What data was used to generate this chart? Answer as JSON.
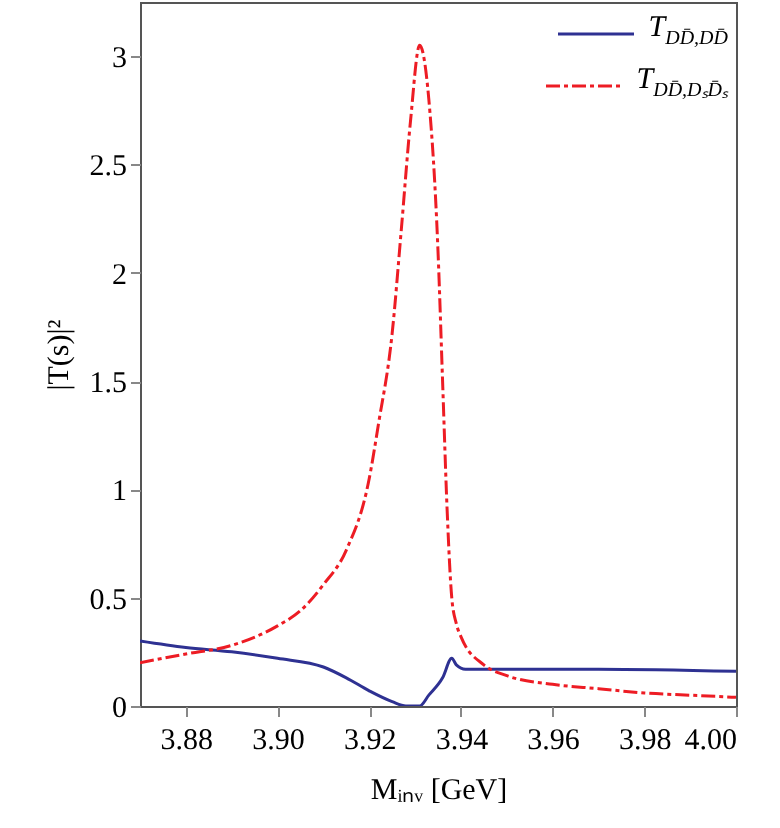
{
  "chart_data": {
    "type": "line",
    "xlabel": "Mᵢₙᵥ [GeV]",
    "ylabel": "|T(s)|²",
    "xlim": [
      3.87,
      4.0
    ],
    "ylim": [
      0,
      3.25
    ],
    "xticks": [
      3.88,
      {
        "value": 3.9,
        "label": "3.90"
      },
      3.92,
      3.94,
      3.96,
      3.98,
      {
        "value": 4.0,
        "label": "4.00"
      }
    ],
    "yticks": [
      0,
      0.5,
      1,
      1.5,
      2,
      2.5,
      3
    ],
    "grid": false,
    "legend": "top right",
    "marker": "none",
    "series": [
      {
        "name": "T$_{DD̄,DD̄}$",
        "color": "#2e3192",
        "line_style": "solid",
        "x": [
          3.87,
          3.88,
          3.89,
          3.9,
          3.91,
          3.915,
          3.92,
          3.925,
          3.928,
          3.931,
          3.933,
          3.936,
          3.938,
          3.939,
          3.941,
          3.95,
          3.97,
          4.0
        ],
        "values": [
          0.3,
          0.27,
          0.25,
          0.22,
          0.18,
          0.13,
          0.07,
          0.02,
          0.0,
          0.0,
          0.05,
          0.13,
          0.22,
          0.19,
          0.17,
          0.17,
          0.17,
          0.16
        ]
      },
      {
        "name": "T$_{DD̄,DₛD̄ₛ}$",
        "color": "#ed1c24",
        "line_style": "dashed",
        "x": [
          3.87,
          3.88,
          3.89,
          3.9,
          3.905,
          3.91,
          3.915,
          3.92,
          3.922,
          3.925,
          3.927,
          3.929,
          3.931,
          3.933,
          3.935,
          3.936,
          3.937,
          3.938,
          3.939,
          3.94,
          3.945,
          3.95,
          3.96,
          3.97,
          3.98,
          3.99,
          4.0
        ],
        "values": [
          0.2,
          0.24,
          0.28,
          0.37,
          0.44,
          0.56,
          0.72,
          1.05,
          1.3,
          1.72,
          2.2,
          2.7,
          3.05,
          2.8,
          2.1,
          1.5,
          0.9,
          0.5,
          0.38,
          0.32,
          0.19,
          0.14,
          0.1,
          0.08,
          0.06,
          0.05,
          0.04
        ]
      }
    ]
  }
}
